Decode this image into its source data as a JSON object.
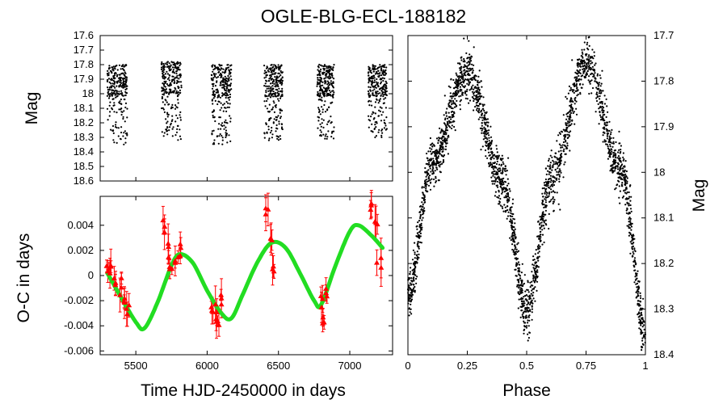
{
  "chart_data": [
    {
      "id": "light_curve_time",
      "type": "scatter",
      "title": "OGLE-BLG-ECL-188182",
      "xlabel": "",
      "ylabel": "Mag",
      "xlim": [
        5250,
        7300
      ],
      "ylim": [
        18.6,
        17.6
      ],
      "yticks": [
        "17.6",
        "17.7",
        "17.8",
        "17.9",
        "18",
        "18.1",
        "18.2",
        "18.3",
        "18.4",
        "18.5",
        "18.6"
      ],
      "series": [
        {
          "name": "observations",
          "color": "#000000",
          "seasons": [
            {
              "x": [
                5300,
                5440
              ],
              "y": [
                17.8,
                18.35
              ]
            },
            {
              "x": [
                5680,
                5820
              ],
              "y": [
                17.78,
                18.32
              ]
            },
            {
              "x": [
                6030,
                6170
              ],
              "y": [
                17.8,
                18.35
              ]
            },
            {
              "x": [
                6400,
                6530
              ],
              "y": [
                17.8,
                18.32
              ]
            },
            {
              "x": [
                6770,
                6890
              ],
              "y": [
                17.8,
                18.32
              ]
            },
            {
              "x": [
                7130,
                7260
              ],
              "y": [
                17.8,
                18.3
              ]
            }
          ]
        }
      ]
    },
    {
      "id": "o_minus_c",
      "type": "scatter",
      "xlabel": "Time HJD-2450000 in days",
      "ylabel": "O-C in days",
      "xlim": [
        5250,
        7300
      ],
      "ylim": [
        -0.0063,
        0.0063
      ],
      "xticks": [
        "5500",
        "6000",
        "6500",
        "7000"
      ],
      "yticks": [
        "0.004",
        "0.002",
        "0",
        "-0.002",
        "-0.004",
        "-0.006"
      ],
      "series": [
        {
          "name": "O-C measurements",
          "color": "#ff0000",
          "marker": "triangle",
          "x": [
            5300,
            5330,
            5360,
            5390,
            5420,
            5440,
            5700,
            5730,
            5750,
            5780,
            5810,
            6040,
            6060,
            6080,
            6100,
            6430,
            6450,
            6470,
            6800,
            6820,
            6840,
            7150,
            7180,
            7210
          ],
          "y": [
            0.0003,
            0.0005,
            -0.0005,
            -0.001,
            -0.002,
            -0.0028,
            0.0035,
            0.002,
            0.0008,
            0.0015,
            0.0022,
            -0.0025,
            -0.003,
            -0.0038,
            -0.002,
            0.005,
            0.0025,
            0.0005,
            -0.002,
            -0.0035,
            -0.001,
            0.0055,
            0.0045,
            0.001
          ]
        },
        {
          "name": "fit",
          "color": "#22dd22",
          "x": [
            5300,
            5400,
            5500,
            5560,
            5650,
            5750,
            5810,
            5900,
            6000,
            6100,
            6170,
            6250,
            6350,
            6450,
            6550,
            6650,
            6750,
            6800,
            6900,
            7000,
            7060,
            7150,
            7230
          ],
          "y": [
            0.0002,
            -0.0018,
            -0.0037,
            -0.0042,
            -0.0022,
            0.0008,
            0.0017,
            0.001,
            -0.0012,
            -0.003,
            -0.0034,
            -0.0015,
            0.001,
            0.0026,
            0.0022,
            0.0002,
            -0.002,
            -0.0023,
            0.0008,
            0.0035,
            0.004,
            0.0032,
            0.0022
          ]
        }
      ]
    },
    {
      "id": "phased_light_curve",
      "type": "scatter",
      "xlabel": "Phase",
      "ylabel": "Mag",
      "xlim": [
        0,
        1
      ],
      "ylim": [
        18.4,
        17.7
      ],
      "xticks": [
        "0",
        "0.25",
        "0.5",
        "0.75",
        "1"
      ],
      "yticks": [
        "17.7",
        "17.8",
        "17.9",
        "18",
        "18.1",
        "18.2",
        "18.3",
        "18.4"
      ],
      "series": [
        {
          "name": "phased observations",
          "color": "#000000",
          "x": [
            0,
            0.1,
            0.25,
            0.4,
            0.5,
            0.6,
            0.75,
            0.9,
            1
          ],
          "y": [
            18.27,
            17.98,
            17.78,
            18.02,
            18.3,
            18.02,
            17.76,
            18.0,
            18.35
          ]
        }
      ]
    }
  ]
}
